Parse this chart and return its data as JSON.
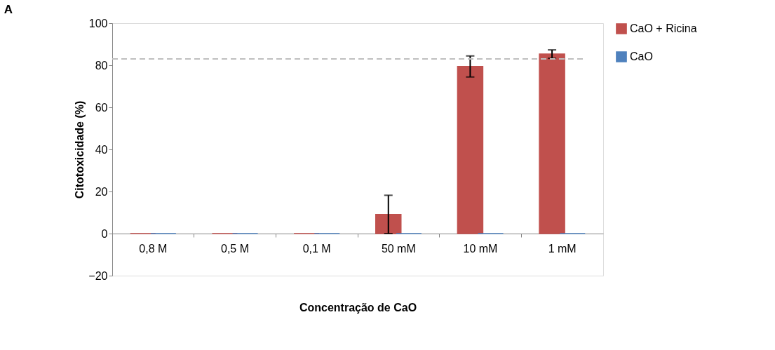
{
  "chart_data": {
    "type": "bar",
    "title": "A",
    "xlabel": "Concentração de CaO",
    "ylabel": "Citotoxicidade (%)",
    "categories": [
      "0,8 M",
      "0,5 M",
      "0,1 M",
      "50 mM",
      "10 mM",
      "1 mM"
    ],
    "series": [
      {
        "name": "CaO + Ricina",
        "color": "#c0504d",
        "values": [
          0,
          0,
          0,
          9.1,
          79.4,
          85.3
        ],
        "errors": [
          null,
          null,
          null,
          9.1,
          5,
          2
        ]
      },
      {
        "name": "CaO",
        "color": "#4f81bd",
        "values": [
          0,
          0,
          0,
          0,
          0,
          0
        ]
      }
    ],
    "ylim": [
      -20,
      100
    ],
    "yticks": [
      -20,
      0,
      20,
      40,
      60,
      80,
      100
    ],
    "ref_lines": [
      {
        "axis": "y",
        "value": 83,
        "color": "#bfbfbf",
        "line_style": "dashed"
      }
    ],
    "grid": false,
    "legend": "right"
  }
}
